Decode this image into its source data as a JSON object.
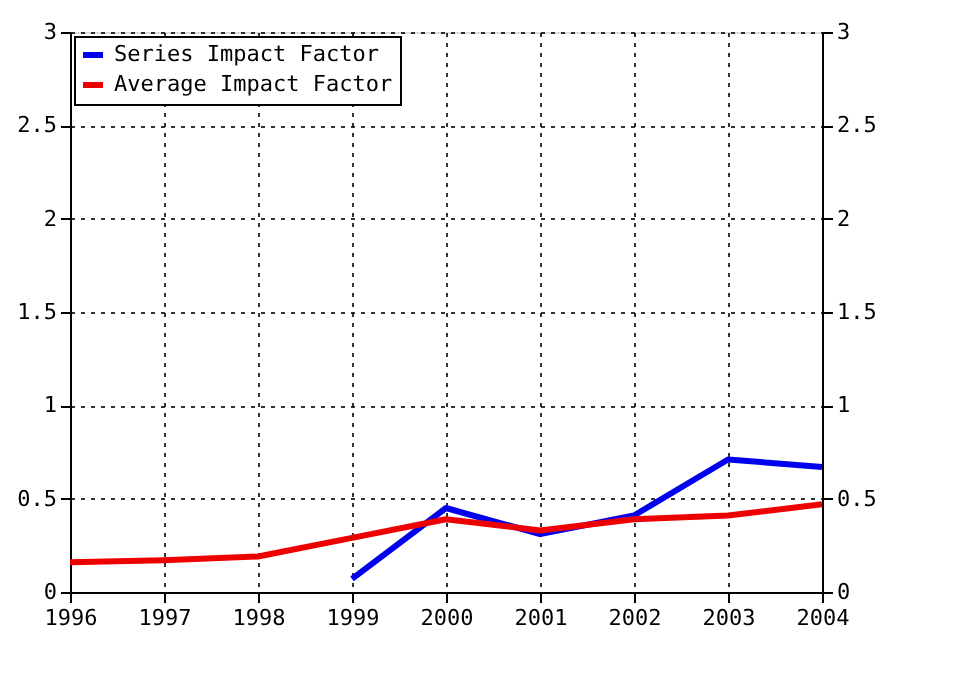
{
  "chart_data": {
    "type": "line",
    "x": [
      1996,
      1997,
      1998,
      1999,
      2000,
      2001,
      2002,
      2003,
      2004
    ],
    "series": [
      {
        "name": "Series Impact Factor",
        "color": "#0000ee",
        "values": [
          null,
          null,
          null,
          0.07,
          0.45,
          0.31,
          0.41,
          0.71,
          0.67
        ]
      },
      {
        "name": "Average Impact Factor",
        "color": "#ee0000",
        "values": [
          0.16,
          0.17,
          0.19,
          0.29,
          0.39,
          0.33,
          0.39,
          0.41,
          0.47
        ]
      }
    ],
    "xlim": [
      1996,
      2004
    ],
    "xticks": [
      1996,
      1997,
      1998,
      1999,
      2000,
      2001,
      2002,
      2003,
      2004
    ],
    "ylim": [
      0,
      3
    ],
    "yticks": [
      0,
      0.5,
      1,
      1.5,
      2,
      2.5,
      3
    ],
    "y2lim": [
      0,
      3
    ],
    "y2ticks": [
      0,
      0.5,
      1,
      1.5,
      2,
      2.5,
      3
    ],
    "grid": true,
    "legend": "top left",
    "line_style": "solid",
    "marker": "none"
  }
}
